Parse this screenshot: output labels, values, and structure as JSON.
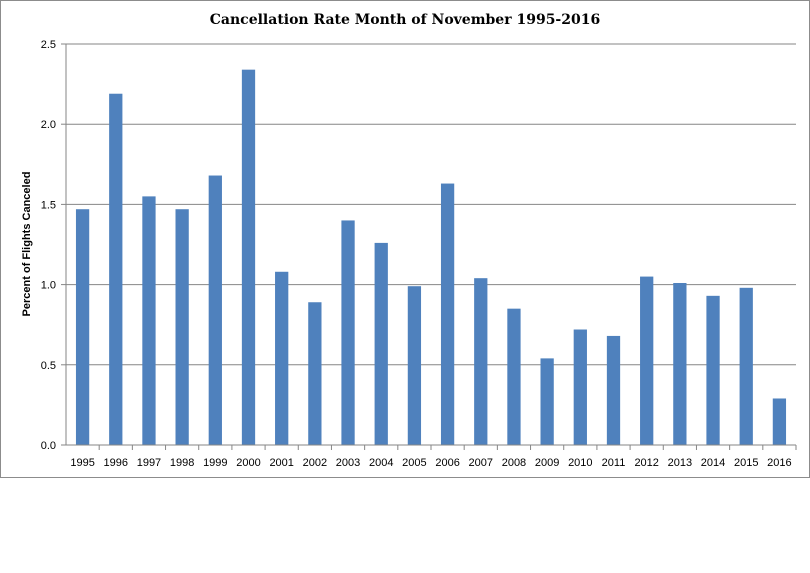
{
  "chart_data": {
    "type": "bar",
    "title": "Cancellation Rate Month of November 1995-2016",
    "xlabel": "",
    "ylabel": "Percent of Flights Canceled",
    "ylim": [
      0,
      2.5
    ],
    "yticks": [
      "0.0",
      "0.5",
      "1.0",
      "1.5",
      "2.0",
      "2.5"
    ],
    "grid": true,
    "bar_color": "#4f81bd",
    "categories": [
      "1995",
      "1996",
      "1997",
      "1998",
      "1999",
      "2000",
      "2001",
      "2002",
      "2003",
      "2004",
      "2005",
      "2006",
      "2007",
      "2008",
      "2009",
      "2010",
      "2011",
      "2012",
      "2013",
      "2014",
      "2015",
      "2016"
    ],
    "values": [
      1.47,
      2.19,
      1.55,
      1.47,
      1.68,
      2.34,
      1.08,
      0.89,
      1.4,
      1.26,
      0.99,
      1.63,
      1.04,
      0.85,
      0.54,
      0.72,
      0.68,
      1.05,
      1.01,
      0.93,
      0.98,
      0.29
    ]
  }
}
